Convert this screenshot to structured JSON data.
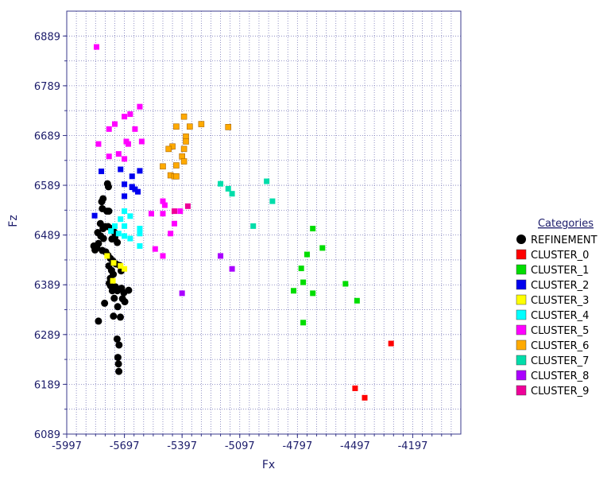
{
  "chart_data": {
    "type": "scatter",
    "xlabel": "Fx",
    "ylabel": "Fz",
    "xlim": [
      -5997,
      -3947
    ],
    "ylim": [
      6089,
      6939
    ],
    "xticks": [
      -5997,
      -5697,
      -5397,
      -5097,
      -4797,
      -4497,
      -4197
    ],
    "yticks": [
      6089,
      6189,
      6289,
      6389,
      6489,
      6589,
      6689,
      6789,
      6889
    ],
    "xtick_labels": [
      "-5997",
      "-5697",
      "-5397",
      "-5097",
      "-4797",
      "-4497",
      "-4197"
    ],
    "ytick_labels": [
      "6089",
      "6189",
      "6289",
      "6389",
      "6489",
      "6589",
      "6689",
      "6789",
      "6889"
    ],
    "grid": true,
    "legend_title": "Categories",
    "legend_placement": "right",
    "series": [
      {
        "name": "REFINEMENT",
        "color": "#000000",
        "marker": "circle",
        "points": [
          [
            -5785,
            6592
          ],
          [
            -5780,
            6586
          ],
          [
            -5808,
            6562
          ],
          [
            -5815,
            6556
          ],
          [
            -5812,
            6542
          ],
          [
            -5788,
            6537
          ],
          [
            -5778,
            6537
          ],
          [
            -5822,
            6512
          ],
          [
            -5808,
            6502
          ],
          [
            -5796,
            6506
          ],
          [
            -5782,
            6506
          ],
          [
            -5766,
            6502
          ],
          [
            -5750,
            6495
          ],
          [
            -5836,
            6494
          ],
          [
            -5820,
            6487
          ],
          [
            -5806,
            6482
          ],
          [
            -5762,
            6481
          ],
          [
            -5747,
            6484
          ],
          [
            -5734,
            6474
          ],
          [
            -5856,
            6467
          ],
          [
            -5850,
            6459
          ],
          [
            -5840,
            6463
          ],
          [
            -5832,
            6472
          ],
          [
            -5812,
            6458
          ],
          [
            -5794,
            6455
          ],
          [
            -5782,
            6448
          ],
          [
            -5770,
            6442
          ],
          [
            -5757,
            6437
          ],
          [
            -5741,
            6431
          ],
          [
            -5722,
            6428
          ],
          [
            -5714,
            6417
          ],
          [
            -5778,
            6427
          ],
          [
            -5764,
            6418
          ],
          [
            -5755,
            6410
          ],
          [
            -5770,
            6402
          ],
          [
            -5776,
            6392
          ],
          [
            -5769,
            6387
          ],
          [
            -5760,
            6377
          ],
          [
            -5744,
            6385
          ],
          [
            -5734,
            6377
          ],
          [
            -5712,
            6382
          ],
          [
            -5700,
            6373
          ],
          [
            -5675,
            6378
          ],
          [
            -5750,
            6362
          ],
          [
            -5707,
            6361
          ],
          [
            -5695,
            6355
          ],
          [
            -5800,
            6352
          ],
          [
            -5732,
            6345
          ],
          [
            -5754,
            6326
          ],
          [
            -5718,
            6324
          ],
          [
            -5832,
            6316
          ],
          [
            -5735,
            6280
          ],
          [
            -5725,
            6268
          ],
          [
            -5731,
            6243
          ],
          [
            -5728,
            6230
          ],
          [
            -5726,
            6215
          ]
        ]
      },
      {
        "name": "CLUSTER_0",
        "color": "#ff0000",
        "marker": "square",
        "points": [
          [
            -4497,
            6181
          ],
          [
            -4447,
            6162
          ],
          [
            -4310,
            6271
          ]
        ]
      },
      {
        "name": "CLUSTER_1",
        "color": "#00dd00",
        "marker": "square",
        "points": [
          [
            -4717,
            6502
          ],
          [
            -4667,
            6463
          ],
          [
            -4747,
            6450
          ],
          [
            -4777,
            6422
          ],
          [
            -4817,
            6377
          ],
          [
            -4717,
            6372
          ],
          [
            -4487,
            6357
          ],
          [
            -4767,
            6394
          ],
          [
            -4547,
            6391
          ],
          [
            -4767,
            6313
          ]
        ]
      },
      {
        "name": "CLUSTER_2",
        "color": "#0000ee",
        "marker": "square",
        "points": [
          [
            -5852,
            6528
          ],
          [
            -5817,
            6617
          ],
          [
            -5717,
            6621
          ],
          [
            -5657,
            6607
          ],
          [
            -5617,
            6618
          ],
          [
            -5697,
            6591
          ],
          [
            -5657,
            6585
          ],
          [
            -5642,
            6581
          ],
          [
            -5627,
            6576
          ],
          [
            -5657,
            6586
          ],
          [
            -5697,
            6567
          ]
        ]
      },
      {
        "name": "CLUSTER_3",
        "color": "#ffff00",
        "marker": "square",
        "points": [
          [
            -5787,
            6447
          ],
          [
            -5753,
            6433
          ],
          [
            -5717,
            6427
          ],
          [
            -5697,
            6421
          ],
          [
            -5757,
            6397
          ]
        ]
      },
      {
        "name": "CLUSTER_4",
        "color": "#00ffff",
        "marker": "square",
        "points": [
          [
            -5697,
            6537
          ],
          [
            -5667,
            6527
          ],
          [
            -5717,
            6521
          ],
          [
            -5747,
            6507
          ],
          [
            -5697,
            6507
          ],
          [
            -5767,
            6497
          ],
          [
            -5727,
            6492
          ],
          [
            -5697,
            6487
          ],
          [
            -5667,
            6482
          ],
          [
            -5617,
            6502
          ],
          [
            -5617,
            6492
          ],
          [
            -5617,
            6467
          ]
        ]
      },
      {
        "name": "CLUSTER_5",
        "color": "#ff00ff",
        "marker": "square",
        "points": [
          [
            -5842,
            6867
          ],
          [
            -5617,
            6747
          ],
          [
            -5667,
            6732
          ],
          [
            -5697,
            6727
          ],
          [
            -5747,
            6712
          ],
          [
            -5777,
            6702
          ],
          [
            -5642,
            6702
          ],
          [
            -5687,
            6677
          ],
          [
            -5677,
            6672
          ],
          [
            -5607,
            6677
          ],
          [
            -5832,
            6672
          ],
          [
            -5727,
            6652
          ],
          [
            -5777,
            6647
          ],
          [
            -5697,
            6642
          ],
          [
            -5497,
            6557
          ],
          [
            -5487,
            6549
          ],
          [
            -5407,
            6537
          ],
          [
            -5497,
            6532
          ],
          [
            -5557,
            6532
          ],
          [
            -5437,
            6512
          ],
          [
            -5457,
            6492
          ],
          [
            -5537,
            6461
          ],
          [
            -5497,
            6447
          ]
        ]
      },
      {
        "name": "CLUSTER_6",
        "color": "#ffaa00",
        "marker": "square",
        "points": [
          [
            -5387,
            6727
          ],
          [
            -5427,
            6707
          ],
          [
            -5357,
            6707
          ],
          [
            -5297,
            6712
          ],
          [
            -5377,
            6687
          ],
          [
            -5377,
            6677
          ],
          [
            -5387,
            6662
          ],
          [
            -5447,
            6667
          ],
          [
            -5467,
            6662
          ],
          [
            -5397,
            6647
          ],
          [
            -5387,
            6637
          ],
          [
            -5427,
            6629
          ],
          [
            -5497,
            6627
          ],
          [
            -5457,
            6609
          ],
          [
            -5437,
            6607
          ],
          [
            -5427,
            6607
          ],
          [
            -5157,
            6706
          ]
        ]
      },
      {
        "name": "CLUSTER_7",
        "color": "#00ddaa",
        "marker": "square",
        "points": [
          [
            -5197,
            6592
          ],
          [
            -5157,
            6582
          ],
          [
            -5137,
            6572
          ],
          [
            -4957,
            6597
          ],
          [
            -4927,
            6557
          ],
          [
            -5027,
            6507
          ]
        ]
      },
      {
        "name": "CLUSTER_8",
        "color": "#aa00ff",
        "marker": "square",
        "points": [
          [
            -5197,
            6447
          ],
          [
            -5137,
            6421
          ],
          [
            -5397,
            6372
          ]
        ]
      },
      {
        "name": "CLUSTER_9",
        "color": "#ee0099",
        "marker": "square",
        "points": [
          [
            -5367,
            6547
          ],
          [
            -5437,
            6537
          ]
        ]
      }
    ]
  }
}
